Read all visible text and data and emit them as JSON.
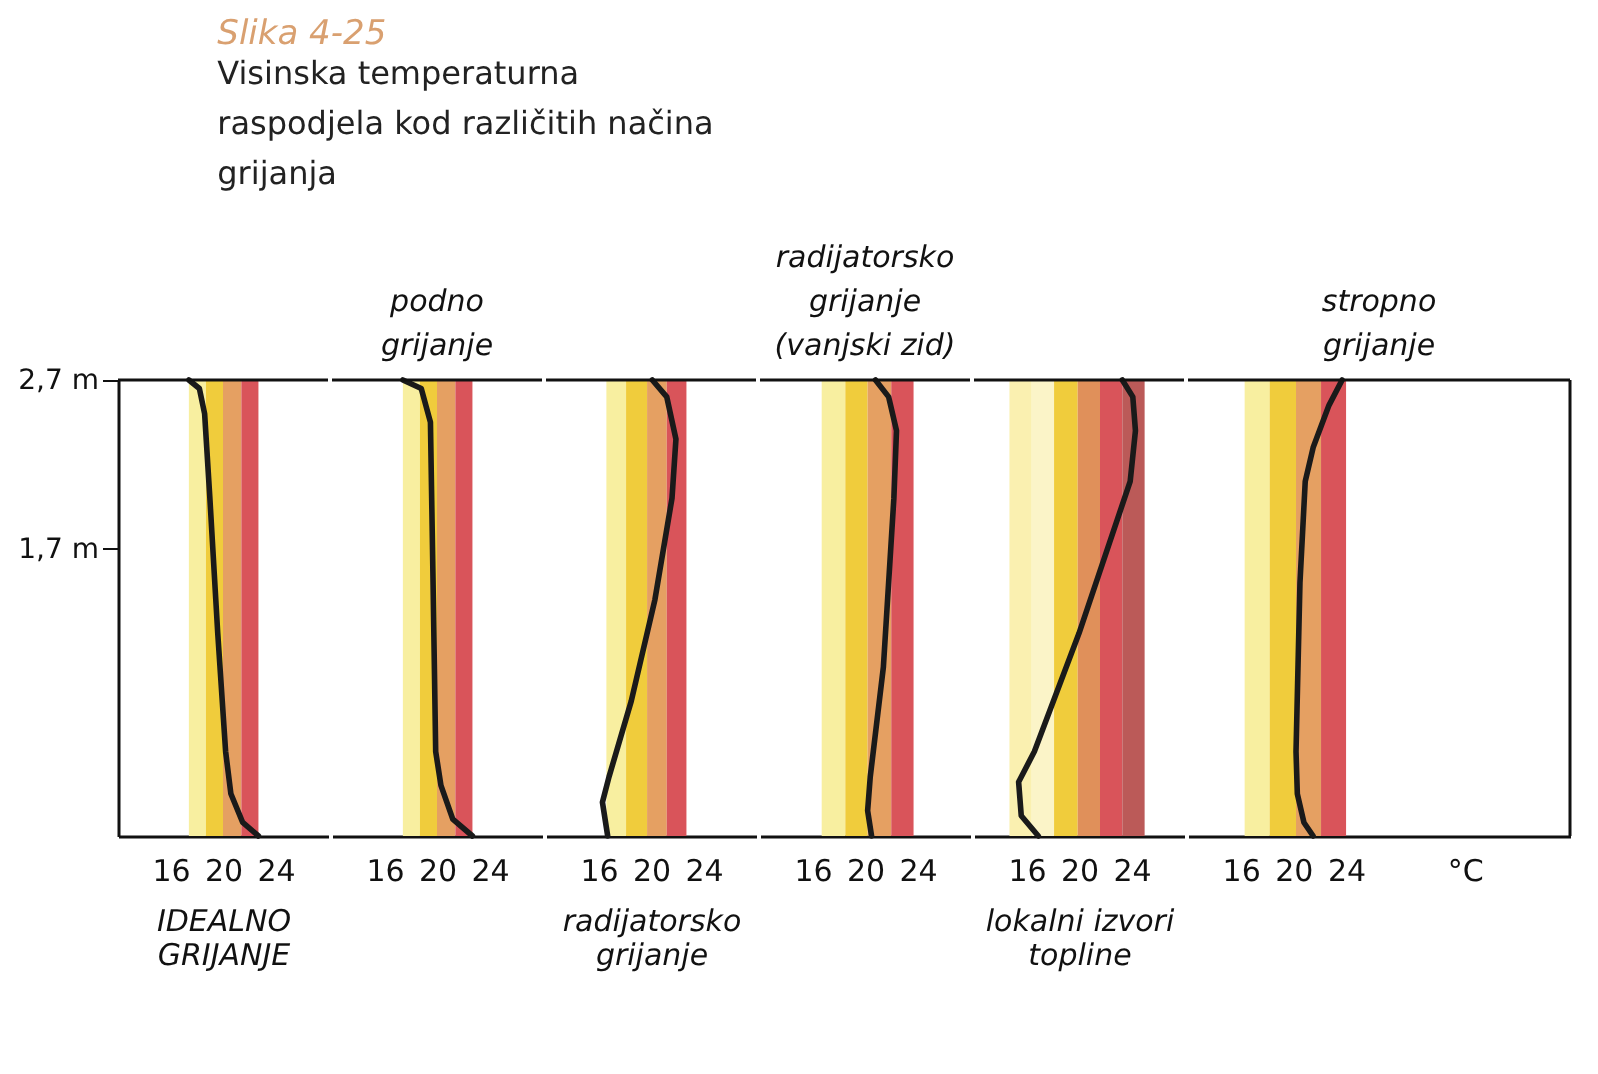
{
  "chart_data": [
    {
      "type": "line",
      "title": "Slika 4-25",
      "subtitle": "Visinska temperaturna\nraspodjela kod različitih načina\ngrijanja",
      "xlabel": "IDEALNO\nGRIJANJE",
      "x": [
        17.4,
        18.2,
        18.6,
        19.0,
        19.6,
        20.2,
        20.6,
        21.5,
        22.7
      ],
      "series": [
        {
          "color": "#1a1a1a",
          "values": [
            2.7,
            2.65,
            2.5,
            2.0,
            1.2,
            0.5,
            0.25,
            0.08,
            0
          ]
        }
      ],
      "xlim": [
        12,
        28
      ],
      "xticks": [
        16,
        20,
        24
      ],
      "ylim": [
        0,
        2.7
      ],
      "yticks": [
        {
          "value": 2.7,
          "label": "2,7 m"
        },
        {
          "value": 1.7,
          "label": "1,7 m"
        }
      ],
      "bands": [
        {
          "axis": "x",
          "from": 17.4,
          "to": 18.7,
          "color": "#f8efa0"
        },
        {
          "axis": "x",
          "from": 18.7,
          "to": 20.0,
          "color": "#f0cc3c"
        },
        {
          "axis": "x",
          "from": 20.0,
          "to": 21.4,
          "color": "#e5a062"
        },
        {
          "axis": "x",
          "from": 21.4,
          "to": 22.7,
          "color": "#d9545a"
        }
      ],
      "grid": false,
      "marker": "none",
      "line_style": "solid"
    },
    {
      "type": "line",
      "title": "podno\ngrijanje",
      "x": [
        17.4,
        18.8,
        19.5,
        19.7,
        19.9,
        20.3,
        21.2,
        22.7
      ],
      "series": [
        {
          "color": "#1a1a1a",
          "values": [
            2.7,
            2.65,
            2.45,
            1.5,
            0.5,
            0.3,
            0.1,
            0
          ]
        }
      ],
      "xlim": [
        12,
        28
      ],
      "xticks": [
        16,
        20,
        24
      ],
      "ylim": [
        0,
        2.7
      ],
      "tick_labels": "x",
      "bands": [
        {
          "axis": "x",
          "from": 17.4,
          "to": 18.7,
          "color": "#f8efa0"
        },
        {
          "axis": "x",
          "from": 18.7,
          "to": 20.0,
          "color": "#f0cc3c"
        },
        {
          "axis": "x",
          "from": 20.0,
          "to": 21.4,
          "color": "#e5a062"
        },
        {
          "axis": "x",
          "from": 21.4,
          "to": 22.7,
          "color": "#d9545a"
        }
      ],
      "grid": false,
      "marker": "none",
      "line_style": "solid"
    },
    {
      "type": "line",
      "xlabel": "radijatorsko\ngrijanje",
      "x": [
        20.1,
        21.2,
        21.9,
        21.6,
        20.3,
        18.5,
        16.8,
        16.3,
        16.7
      ],
      "series": [
        {
          "color": "#1a1a1a",
          "values": [
            2.7,
            2.6,
            2.35,
            2.0,
            1.4,
            0.8,
            0.35,
            0.2,
            0
          ]
        }
      ],
      "xlim": [
        12,
        28
      ],
      "xticks": [
        16,
        20,
        24
      ],
      "ylim": [
        0,
        2.7
      ],
      "tick_labels": "x",
      "bands": [
        {
          "axis": "x",
          "from": 16.6,
          "to": 18.1,
          "color": "#f8efa0"
        },
        {
          "axis": "x",
          "from": 18.1,
          "to": 19.7,
          "color": "#f0cc3c"
        },
        {
          "axis": "x",
          "from": 19.7,
          "to": 21.2,
          "color": "#e5a062"
        },
        {
          "axis": "x",
          "from": 21.2,
          "to": 22.7,
          "color": "#d9545a"
        }
      ],
      "grid": false,
      "marker": "none",
      "line_style": "solid"
    },
    {
      "type": "line",
      "title": "radijatorsko\ngrijanje\n(vanjski zid)",
      "x": [
        20.8,
        21.8,
        22.4,
        22.2,
        21.4,
        20.4,
        20.2,
        20.5
      ],
      "series": [
        {
          "color": "#1a1a1a",
          "values": [
            2.7,
            2.6,
            2.4,
            2.0,
            1.0,
            0.35,
            0.15,
            0
          ]
        }
      ],
      "xlim": [
        12,
        28
      ],
      "xticks": [
        16,
        20,
        24
      ],
      "ylim": [
        0,
        2.7
      ],
      "tick_labels": "x",
      "bands": [
        {
          "axis": "x",
          "from": 16.7,
          "to": 18.5,
          "color": "#f8efa0"
        },
        {
          "axis": "x",
          "from": 18.5,
          "to": 20.2,
          "color": "#f0cc3c"
        },
        {
          "axis": "x",
          "from": 20.2,
          "to": 22.0,
          "color": "#e5a062"
        },
        {
          "axis": "x",
          "from": 22.0,
          "to": 23.7,
          "color": "#d9545a"
        }
      ],
      "grid": false,
      "marker": "none",
      "line_style": "solid"
    },
    {
      "type": "line",
      "xlabel": "lokalni izvori\ntopline",
      "x": [
        23.3,
        24.1,
        24.3,
        23.9,
        20.0,
        16.6,
        15.4,
        15.6,
        16.9
      ],
      "series": [
        {
          "color": "#1a1a1a",
          "values": [
            2.7,
            2.6,
            2.4,
            2.1,
            1.2,
            0.5,
            0.32,
            0.12,
            0
          ]
        }
      ],
      "xlim": [
        12,
        28
      ],
      "xticks": [
        16,
        20,
        24
      ],
      "ylim": [
        0,
        2.7
      ],
      "tick_labels": "x",
      "bands": [
        {
          "axis": "x",
          "from": 14.7,
          "to": 16.4,
          "color": "#faf0b0"
        },
        {
          "axis": "x",
          "from": 16.4,
          "to": 18.1,
          "color": "#fbf4c8"
        },
        {
          "axis": "x",
          "from": 18.1,
          "to": 19.9,
          "color": "#f0cc3c"
        },
        {
          "axis": "x",
          "from": 19.9,
          "to": 21.6,
          "color": "#e0905a"
        },
        {
          "axis": "x",
          "from": 21.6,
          "to": 23.3,
          "color": "#d9545a"
        },
        {
          "axis": "x",
          "from": 23.3,
          "to": 25.0,
          "color": "#bb5a58"
        }
      ],
      "grid": false,
      "marker": "none",
      "line_style": "solid"
    },
    {
      "type": "line",
      "title": "stropno\ngrijanje",
      "x": [
        23.7,
        22.7,
        21.5,
        20.9,
        20.5,
        20.2,
        20.3,
        20.8,
        21.5
      ],
      "series": [
        {
          "color": "#1a1a1a",
          "values": [
            2.7,
            2.55,
            2.3,
            2.1,
            1.5,
            0.5,
            0.25,
            0.08,
            0
          ]
        }
      ],
      "xlim": [
        12,
        41
      ],
      "xticks": [
        16,
        20,
        24,
        {
          "value": 33,
          "label": "°C"
        }
      ],
      "ylim": [
        0,
        2.7
      ],
      "tick_labels": "x",
      "bands": [
        {
          "axis": "x",
          "from": 16.3,
          "to": 18.2,
          "color": "#f8efa0"
        },
        {
          "axis": "x",
          "from": 18.2,
          "to": 20.2,
          "color": "#f0cc3c"
        },
        {
          "axis": "x",
          "from": 20.2,
          "to": 22.1,
          "color": "#e5a062"
        },
        {
          "axis": "x",
          "from": 22.1,
          "to": 24.0,
          "color": "#d9545a"
        }
      ],
      "grid": false,
      "marker": "none",
      "line_style": "solid"
    }
  ]
}
